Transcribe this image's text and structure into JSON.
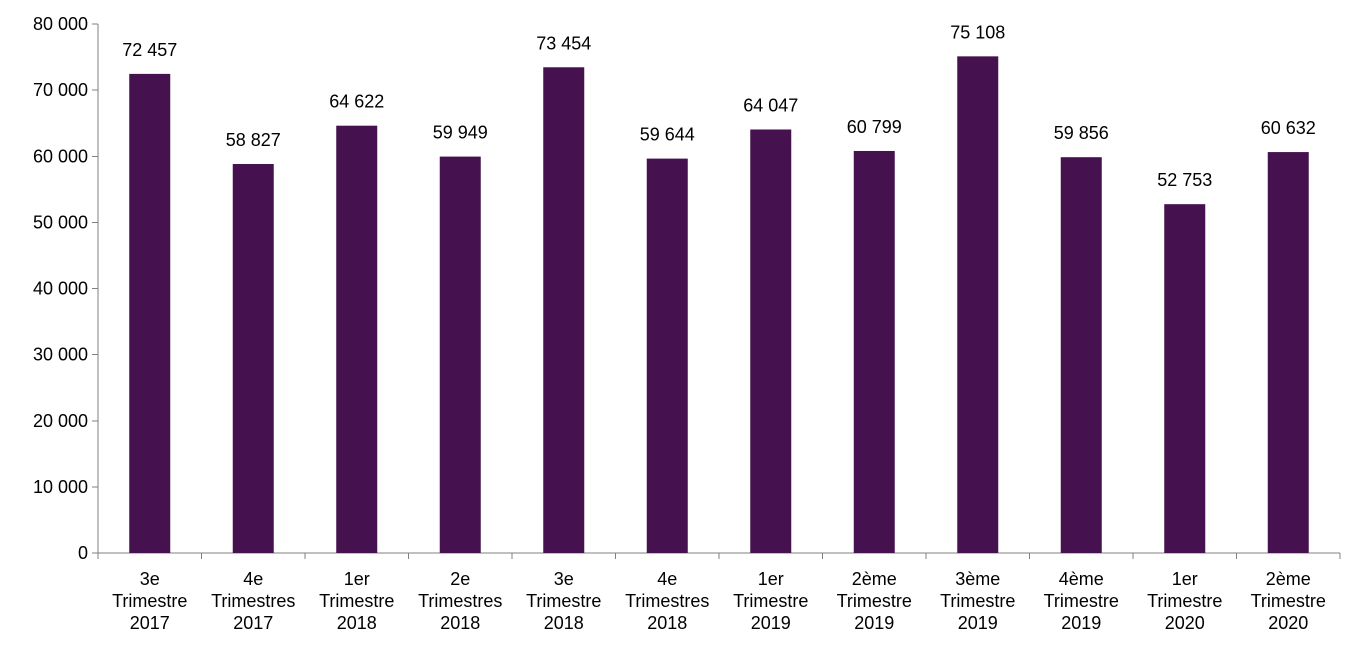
{
  "chart_data": {
    "type": "bar",
    "title": "",
    "xlabel": "",
    "ylabel": "",
    "ylim": [
      0,
      80000
    ],
    "yticks": [
      0,
      10000,
      20000,
      30000,
      40000,
      50000,
      60000,
      70000,
      80000
    ],
    "ytick_labels": [
      "0",
      "10 000",
      "20 000",
      "30 000",
      "40 000",
      "50 000",
      "60 000",
      "70 000",
      "80 000"
    ],
    "categories": [
      [
        "3e",
        "Trimestre",
        "2017"
      ],
      [
        "4e",
        "Trimestres",
        "2017"
      ],
      [
        "1er",
        "Trimestre",
        "2018"
      ],
      [
        "2e",
        "Trimestres",
        "2018"
      ],
      [
        "3e",
        "Trimestre",
        "2018"
      ],
      [
        "4e",
        "Trimestres",
        "2018"
      ],
      [
        "1er",
        "Trimestre",
        "2019"
      ],
      [
        "2ème",
        "Trimestre",
        "2019"
      ],
      [
        "3ème",
        "Trimestre",
        "2019"
      ],
      [
        "4ème",
        "Trimestre",
        "2019"
      ],
      [
        "1er",
        "Trimestre",
        "2020"
      ],
      [
        "2ème",
        "Trimestre",
        "2020"
      ]
    ],
    "values": [
      72457,
      58827,
      64622,
      59949,
      73454,
      59644,
      64047,
      60799,
      75108,
      59856,
      52753,
      60632
    ],
    "data_labels": [
      "72 457",
      "58 827",
      "64 622",
      "59 949",
      "73 454",
      "59 644",
      "64 047",
      "60 799",
      "75 108",
      "59 856",
      "52 753",
      "60 632"
    ],
    "bar_color": "#45114F",
    "grid": false,
    "legend": "none"
  }
}
